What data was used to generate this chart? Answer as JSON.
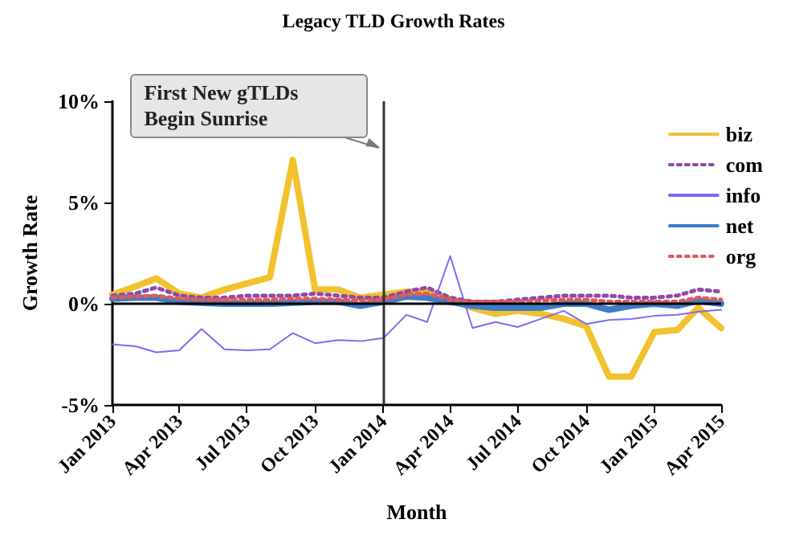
{
  "chart_data": {
    "type": "line",
    "title": "Legacy TLD Growth Rates",
    "xlabel": "Month",
    "ylabel": "Growth Rate",
    "x": [
      "2013-01",
      "2013-02",
      "2013-03",
      "2013-04",
      "2013-05",
      "2013-06",
      "2013-07",
      "2013-08",
      "2013-09",
      "2013-10",
      "2013-11",
      "2013-12",
      "2014-01",
      "2014-02",
      "2014-03",
      "2014-04",
      "2014-05",
      "2014-06",
      "2014-07",
      "2014-08",
      "2014-09",
      "2014-10",
      "2014-11",
      "2014-12",
      "2015-01",
      "2015-02",
      "2015-03",
      "2015-04"
    ],
    "series": [
      {
        "name": "biz",
        "color": "#f2c12e",
        "line_style": "solid",
        "values": [
          0.45,
          0.85,
          1.25,
          0.5,
          0.3,
          0.7,
          1.0,
          1.3,
          7.1,
          0.7,
          0.7,
          0.3,
          0.45,
          0.6,
          0.6,
          0.2,
          -0.2,
          -0.5,
          -0.35,
          -0.5,
          -0.75,
          -1.1,
          -3.6,
          -3.6,
          -1.4,
          -1.3,
          -0.2,
          -1.2
        ]
      },
      {
        "name": "com",
        "color": "#8e4aa8",
        "line_style": "dotted",
        "values": [
          0.4,
          0.5,
          0.8,
          0.4,
          0.3,
          0.3,
          0.4,
          0.4,
          0.4,
          0.5,
          0.4,
          0.3,
          0.3,
          0.6,
          0.8,
          0.3,
          0.1,
          0.1,
          0.2,
          0.3,
          0.4,
          0.4,
          0.4,
          0.3,
          0.3,
          0.4,
          0.7,
          0.6
        ]
      },
      {
        "name": "info",
        "color": "#7b6cf0",
        "line_style": "solid",
        "values": [
          -2.0,
          -2.1,
          -2.4,
          -2.3,
          -1.25,
          -2.25,
          -2.3,
          -2.25,
          -1.45,
          -1.95,
          -1.8,
          -1.85,
          -1.7,
          -0.55,
          -0.9,
          2.35,
          -1.2,
          -0.9,
          -1.15,
          -0.75,
          -0.35,
          -1.0,
          -0.8,
          -0.75,
          -0.6,
          -0.55,
          -0.4,
          -0.3
        ]
      },
      {
        "name": "net",
        "color": "#3d7cc9",
        "line_style": "solid",
        "values": [
          0.25,
          0.3,
          0.3,
          0.1,
          0.05,
          0.0,
          0.0,
          0.0,
          0.05,
          0.1,
          0.1,
          -0.1,
          0.1,
          0.35,
          0.3,
          0.1,
          -0.1,
          -0.2,
          -0.2,
          -0.2,
          0.0,
          0.0,
          -0.3,
          -0.1,
          0.0,
          -0.1,
          0.15,
          0.0
        ]
      },
      {
        "name": "org",
        "color": "#e05a5a",
        "line_style": "dotted",
        "values": [
          0.3,
          0.35,
          0.4,
          0.25,
          0.2,
          0.2,
          0.2,
          0.2,
          0.25,
          0.25,
          0.2,
          0.15,
          0.2,
          0.45,
          0.5,
          0.2,
          0.1,
          0.1,
          0.1,
          0.15,
          0.2,
          0.2,
          0.1,
          0.1,
          0.1,
          0.1,
          0.3,
          0.2
        ]
      }
    ],
    "xlim": [
      "2013-01",
      "2015-04"
    ],
    "xticks": [
      {
        "value": "2013-01",
        "label": "Jan 2013"
      },
      {
        "value": "2013-04",
        "label": "Apr 2013"
      },
      {
        "value": "2013-07",
        "label": "Jul 2013"
      },
      {
        "value": "2013-10",
        "label": "Oct 2013"
      },
      {
        "value": "2014-01",
        "label": "Jan 2014"
      },
      {
        "value": "2014-04",
        "label": "Apr 2014"
      },
      {
        "value": "2014-07",
        "label": "Jul 2014"
      },
      {
        "value": "2014-10",
        "label": "Oct 2014"
      },
      {
        "value": "2015-01",
        "label": "Jan 2015"
      },
      {
        "value": "2015-04",
        "label": "Apr 2015"
      }
    ],
    "ylim": [
      -5,
      10
    ],
    "yticks": [
      {
        "value": -5,
        "label": "-5%"
      },
      {
        "value": 0,
        "label": "0%"
      },
      {
        "value": 5,
        "label": "5%"
      },
      {
        "value": 10,
        "label": "10%"
      }
    ],
    "ref_lines": [
      {
        "axis": "x",
        "value": "2014-01",
        "label": "First New gTLDs Begin Sunrise",
        "color": "#333333"
      },
      {
        "axis": "y",
        "value": 0,
        "color": "#000000"
      }
    ],
    "grid": false,
    "legend": "top right",
    "marker": "none"
  }
}
